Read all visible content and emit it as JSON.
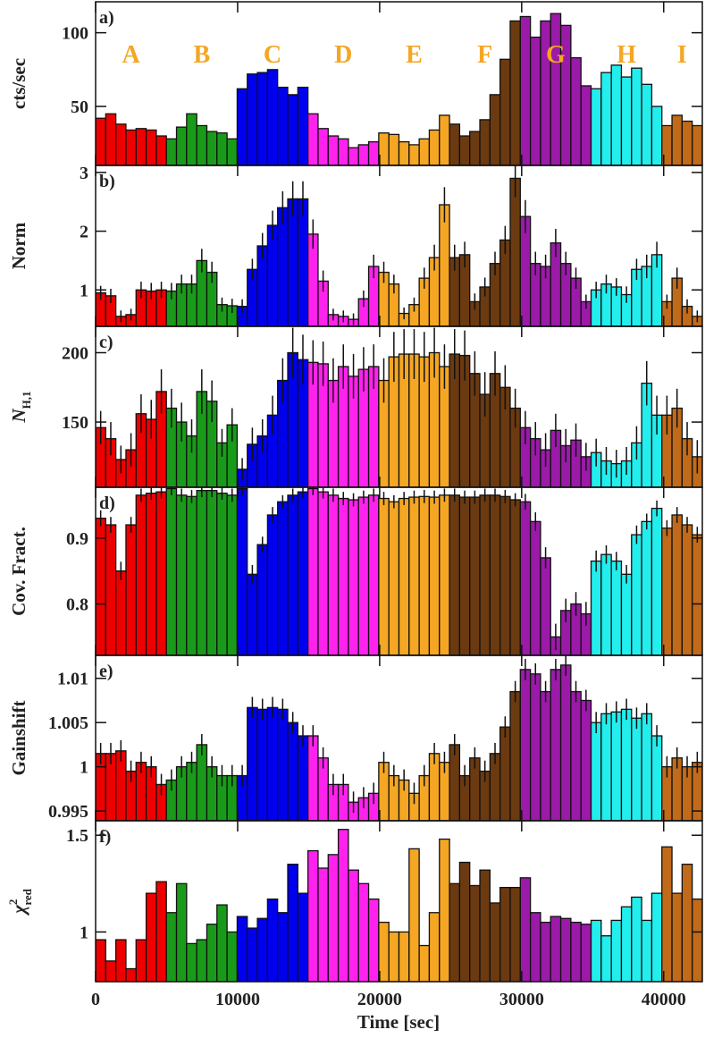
{
  "chart_data": {
    "type": "histogram",
    "xlabel": "Time [sec]",
    "xlim": [
      0,
      42720
    ],
    "xticks": [
      0,
      10000,
      20000,
      30000,
      40000
    ],
    "bins": [
      0,
      712,
      1424,
      2136,
      2848,
      3560,
      4272,
      4984,
      5696,
      6408,
      7120,
      7832,
      8544,
      9256,
      9968,
      10680,
      11392,
      12104,
      12816,
      13528,
      14240,
      14952,
      15664,
      16376,
      17088,
      17800,
      18512,
      19224,
      19936,
      20648,
      21360,
      22072,
      22784,
      23496,
      24208,
      24920,
      25632,
      26344,
      27056,
      27768,
      28480,
      29192,
      29904,
      30616,
      31328,
      32040,
      32752,
      33464,
      34176,
      34888,
      35600,
      36312,
      37024,
      37736,
      38448,
      39160,
      39872,
      40584,
      41296,
      42008,
      42720
    ],
    "groups": [
      {
        "name": "A",
        "color": "#ee0000",
        "range": [
          0,
          4984
        ]
      },
      {
        "name": "B",
        "color": "#1a9a1a",
        "range": [
          4984,
          9968
        ]
      },
      {
        "name": "C",
        "color": "#0000ee",
        "range": [
          9968,
          14952
        ]
      },
      {
        "name": "D",
        "color": "#ff22ee",
        "range": [
          14952,
          19936
        ]
      },
      {
        "name": "E",
        "color": "#f5a623",
        "range": [
          19936,
          24920
        ]
      },
      {
        "name": "F",
        "color": "#6b3a10",
        "range": [
          24920,
          29904
        ]
      },
      {
        "name": "G",
        "color": "#9b1aa8",
        "range": [
          29904,
          34888
        ]
      },
      {
        "name": "H",
        "color": "#22eeee",
        "range": [
          34888,
          39872
        ]
      },
      {
        "name": "I",
        "color": "#c06a1a",
        "range": [
          39872,
          42720
        ]
      }
    ],
    "panels": [
      {
        "label": "a)",
        "ylabel": {
          "text": "cts/sec"
        },
        "ylim": [
          10,
          121
        ],
        "yticks": [
          50,
          100
        ],
        "values": [
          42,
          45,
          38,
          34,
          35,
          34,
          30,
          28,
          36,
          45,
          37,
          33,
          32,
          28,
          62,
          72,
          73,
          75,
          63,
          58,
          63,
          45,
          35,
          30,
          28,
          22,
          24,
          26,
          32,
          31,
          26,
          24,
          28,
          34,
          44,
          38,
          30,
          33,
          41,
          58,
          82,
          108,
          111,
          97,
          108,
          113,
          105,
          83,
          64,
          62,
          73,
          78,
          70,
          76,
          65,
          50,
          37,
          44,
          40,
          37
        ]
      },
      {
        "label": "b)",
        "ylabel": {
          "text": "Norm"
        },
        "ylim": [
          0.38,
          3.12
        ],
        "yticks": [
          1,
          2,
          3
        ],
        "values": [
          0.95,
          0.9,
          0.55,
          0.58,
          1.0,
          0.98,
          1.0,
          0.98,
          1.1,
          1.1,
          1.5,
          1.3,
          0.75,
          0.73,
          0.72,
          1.35,
          1.75,
          2.1,
          2.4,
          2.55,
          2.55,
          1.95,
          1.15,
          0.58,
          0.55,
          0.5,
          0.85,
          1.4,
          1.3,
          1.1,
          0.6,
          0.75,
          1.2,
          1.55,
          2.45,
          1.55,
          1.6,
          0.8,
          1.05,
          1.45,
          1.85,
          2.9,
          2.25,
          1.45,
          1.4,
          1.8,
          1.45,
          1.2,
          0.8,
          1.0,
          1.1,
          1.05,
          0.92,
          1.35,
          1.4,
          1.6,
          0.8,
          1.2,
          0.72,
          0.55
        ],
        "errors": [
          0.12,
          0.12,
          0.1,
          0.1,
          0.14,
          0.14,
          0.14,
          0.14,
          0.16,
          0.16,
          0.2,
          0.18,
          0.12,
          0.12,
          0.12,
          0.18,
          0.22,
          0.25,
          0.28,
          0.3,
          0.3,
          0.25,
          0.18,
          0.1,
          0.1,
          0.1,
          0.14,
          0.2,
          0.18,
          0.16,
          0.1,
          0.12,
          0.18,
          0.22,
          0.3,
          0.22,
          0.22,
          0.14,
          0.16,
          0.2,
          0.24,
          0.32,
          0.28,
          0.2,
          0.2,
          0.24,
          0.2,
          0.18,
          0.12,
          0.14,
          0.16,
          0.15,
          0.14,
          0.18,
          0.2,
          0.22,
          0.12,
          0.18,
          0.12,
          0.1
        ]
      },
      {
        "label": "c)",
        "ylabel": {
          "text": "N",
          "sub": "H,1"
        },
        "ylim": [
          103,
          219
        ],
        "yticks": [
          150,
          200
        ],
        "values": [
          146,
          138,
          123,
          130,
          156,
          152,
          172,
          160,
          150,
          140,
          172,
          165,
          135,
          148,
          116,
          134,
          140,
          155,
          180,
          200,
          195,
          193,
          192,
          180,
          190,
          183,
          188,
          190,
          180,
          197,
          199,
          199,
          197,
          200,
          190,
          199,
          198,
          185,
          170,
          185,
          175,
          160,
          146,
          138,
          130,
          144,
          133,
          137,
          125,
          128,
          122,
          120,
          122,
          135,
          178,
          155,
          155,
          160,
          138,
          125
        ],
        "errors": [
          12,
          12,
          10,
          12,
          14,
          14,
          16,
          14,
          14,
          12,
          16,
          15,
          10,
          12,
          8,
          12,
          12,
          14,
          16,
          18,
          18,
          16,
          16,
          16,
          16,
          16,
          16,
          16,
          16,
          18,
          18,
          18,
          18,
          18,
          16,
          18,
          18,
          16,
          16,
          16,
          16,
          14,
          12,
          12,
          12,
          12,
          12,
          12,
          10,
          10,
          10,
          10,
          10,
          12,
          16,
          14,
          14,
          14,
          12,
          12
        ]
      },
      {
        "label": "d)",
        "ylabel": {
          "text": "Cov. Fract."
        },
        "ylim": [
          0.722,
          0.977
        ],
        "yticks": [
          0.8,
          0.9
        ],
        "values": [
          0.93,
          0.92,
          0.85,
          0.92,
          0.965,
          0.968,
          0.97,
          0.975,
          0.965,
          0.963,
          0.972,
          0.972,
          0.968,
          0.965,
          0.975,
          0.845,
          0.89,
          0.935,
          0.955,
          0.965,
          0.97,
          0.975,
          0.97,
          0.965,
          0.96,
          0.958,
          0.962,
          0.965,
          0.96,
          0.955,
          0.96,
          0.962,
          0.963,
          0.962,
          0.965,
          0.965,
          0.962,
          0.962,
          0.965,
          0.965,
          0.963,
          0.958,
          0.955,
          0.925,
          0.87,
          0.75,
          0.79,
          0.8,
          0.785,
          0.865,
          0.875,
          0.865,
          0.845,
          0.905,
          0.925,
          0.945,
          0.915,
          0.935,
          0.92,
          0.905
        ],
        "errors": [
          0.012,
          0.012,
          0.014,
          0.012,
          0.01,
          0.01,
          0.01,
          0.01,
          0.01,
          0.01,
          0.01,
          0.01,
          0.01,
          0.01,
          0.01,
          0.014,
          0.012,
          0.012,
          0.01,
          0.01,
          0.01,
          0.01,
          0.01,
          0.01,
          0.01,
          0.01,
          0.01,
          0.01,
          0.01,
          0.01,
          0.01,
          0.01,
          0.01,
          0.01,
          0.01,
          0.01,
          0.01,
          0.01,
          0.01,
          0.01,
          0.01,
          0.01,
          0.012,
          0.014,
          0.016,
          0.02,
          0.018,
          0.018,
          0.018,
          0.016,
          0.014,
          0.014,
          0.014,
          0.014,
          0.012,
          0.012,
          0.012,
          0.012,
          0.012,
          0.012
        ]
      },
      {
        "label": "e)",
        "ylabel": {
          "text": "Gainshift"
        },
        "ylim": [
          0.9939,
          1.0126
        ],
        "yticks": [
          0.995,
          1,
          1.005,
          1.01
        ],
        "values": [
          1.0015,
          1.0015,
          1.0018,
          0.9995,
          1.0005,
          1.0,
          0.998,
          0.9985,
          1.0,
          1.0005,
          1.0025,
          1.0,
          0.999,
          0.999,
          0.999,
          1.0067,
          1.0065,
          1.0067,
          1.0065,
          1.005,
          1.0035,
          1.0035,
          1.001,
          0.998,
          0.998,
          0.996,
          0.9965,
          0.997,
          1.0005,
          0.999,
          0.9985,
          0.997,
          0.999,
          1.0015,
          1.0005,
          1.0025,
          0.999,
          1.001,
          0.9995,
          1.0015,
          1.0045,
          1.0085,
          1.011,
          1.0105,
          1.0085,
          1.011,
          1.0115,
          1.0085,
          1.0075,
          1.005,
          1.006,
          1.0062,
          1.0065,
          1.0055,
          1.006,
          1.0035,
          1.0,
          1.001,
          1.0,
          1.0005
        ],
        "errors": [
          0.0012,
          0.0012,
          0.0012,
          0.0012,
          0.0012,
          0.0012,
          0.0012,
          0.0012,
          0.0012,
          0.0012,
          0.0012,
          0.0012,
          0.0012,
          0.0012,
          0.0012,
          0.0012,
          0.0012,
          0.0012,
          0.0012,
          0.0012,
          0.0012,
          0.0012,
          0.0012,
          0.0012,
          0.0012,
          0.0012,
          0.0012,
          0.0012,
          0.0012,
          0.0012,
          0.0012,
          0.0012,
          0.0012,
          0.0012,
          0.0012,
          0.0012,
          0.0012,
          0.0012,
          0.0012,
          0.0012,
          0.0012,
          0.0012,
          0.0012,
          0.0012,
          0.0012,
          0.0012,
          0.0012,
          0.0012,
          0.0012,
          0.0012,
          0.0012,
          0.0012,
          0.0012,
          0.0012,
          0.0012,
          0.0012,
          0.0012,
          0.0012,
          0.0012,
          0.0012
        ]
      },
      {
        "label": "f)",
        "ylabel": {
          "text": "χ",
          "sup": "2",
          "sub": "red"
        },
        "ylim": [
          0.743,
          1.575
        ],
        "yticks": [
          1,
          1.5
        ],
        "values": [
          0.96,
          0.85,
          0.96,
          0.81,
          0.96,
          1.2,
          1.26,
          1.1,
          1.25,
          0.94,
          0.96,
          1.04,
          1.14,
          1.0,
          1.08,
          1.02,
          1.07,
          1.17,
          1.1,
          1.35,
          1.2,
          1.42,
          1.33,
          1.4,
          1.53,
          1.32,
          1.25,
          1.17,
          1.05,
          1.0,
          1.0,
          1.43,
          0.93,
          1.1,
          1.48,
          1.25,
          1.36,
          1.24,
          1.32,
          1.15,
          1.23,
          1.23,
          1.28,
          1.1,
          1.05,
          1.08,
          1.07,
          1.05,
          1.04,
          1.06,
          0.98,
          1.06,
          1.13,
          1.18,
          1.06,
          1.2,
          1.44,
          1.2,
          1.35,
          1.17
        ]
      }
    ]
  }
}
